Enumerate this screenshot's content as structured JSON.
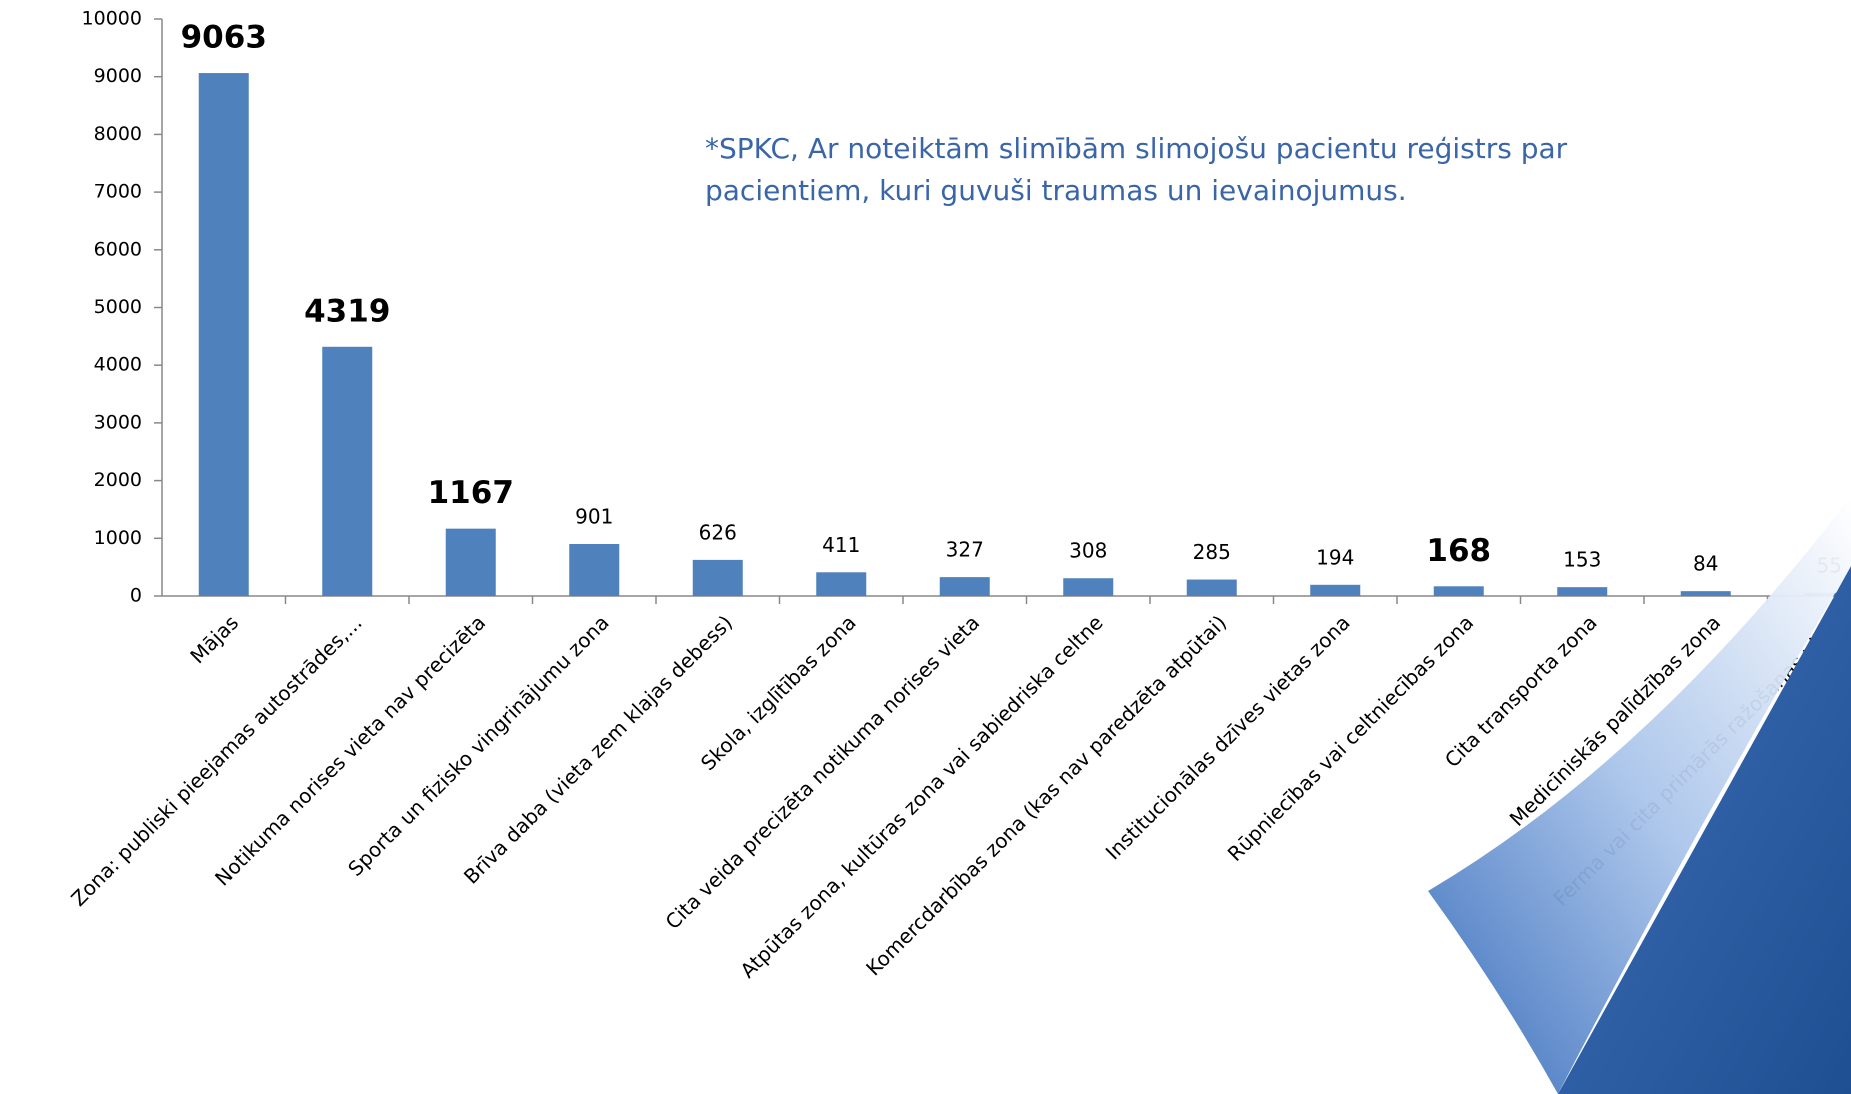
{
  "chart_data": {
    "type": "bar",
    "categories": [
      "Mājas",
      "Zona: publiski pieejamas autostrādes,...",
      "Notikuma norises vieta nav precizēta",
      "Sporta un fizisko vingrinājumu zona",
      "Brīva daba (vieta zem klajas debess)",
      "Skola, izglītības zona",
      "Cita veida precizēta notikuma norises vieta",
      "Atpūtas zona, kultūras zona vai sabiedriska celtne",
      "Komercdarbības zona (kas nav paredzēta atpūtai)",
      "Institucionālas dzīves vietas zona",
      "Rūpniecības vai celtniecības zona",
      "Cita transporta zona",
      "Medicīniskās palīdzības zona",
      "Ferma vai cita primārās ražošanas vieta"
    ],
    "values": [
      9063,
      4319,
      1167,
      901,
      626,
      411,
      327,
      308,
      285,
      194,
      168,
      153,
      84,
      55
    ],
    "color": "#4f81bd",
    "ylim": [
      0,
      10000
    ],
    "yticks": [
      0,
      1000,
      2000,
      3000,
      4000,
      5000,
      6000,
      7000,
      8000,
      9000,
      10000
    ],
    "annotation": [
      "*SPKC, Ar noteiktām slimībām slimojošu pacientu reģistrs par",
      "pacientiem, kuri guvuši traumas un ievainojumus."
    ]
  }
}
